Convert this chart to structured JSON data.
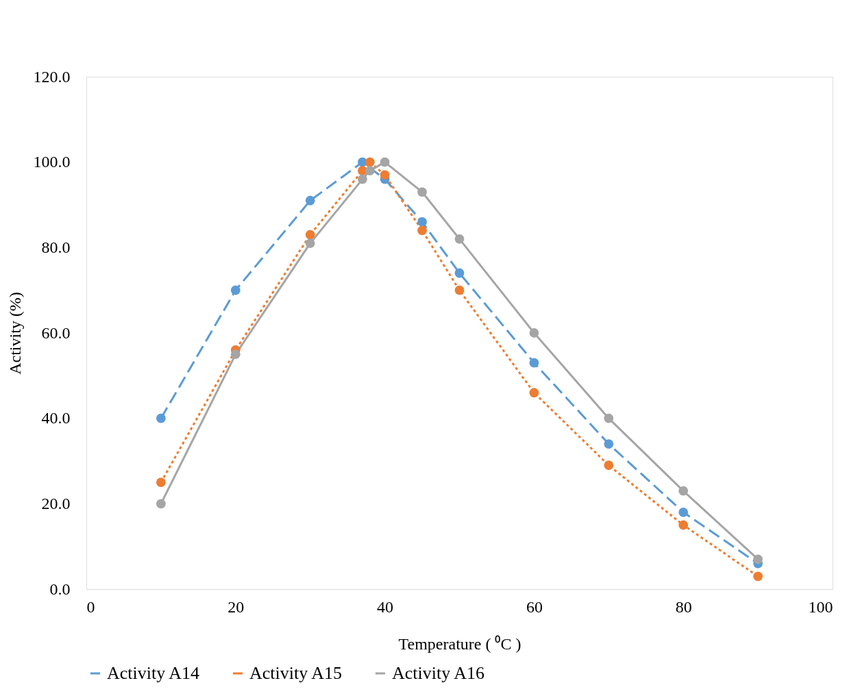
{
  "chart_data": {
    "type": "line",
    "xlabel": "Temperature ( ⁰C )",
    "ylabel": "Activity (%)",
    "xlim": [
      0,
      100
    ],
    "xticks": [
      0,
      20,
      40,
      60,
      80,
      100
    ],
    "ylim": [
      0,
      120
    ],
    "yticks": [
      {
        "value": 0,
        "label": "0.0"
      },
      {
        "value": 20,
        "label": "20.0"
      },
      {
        "value": 40,
        "label": "40.0"
      },
      {
        "value": 60,
        "label": "60.0"
      },
      {
        "value": 80,
        "label": "80.0"
      },
      {
        "value": 100,
        "label": "100.0"
      },
      {
        "value": 120,
        "label": "120.0"
      }
    ],
    "grid": false,
    "legend": "bottom",
    "marker": "circle",
    "series": [
      {
        "name": "Activity A14",
        "color": "#5b9bd5",
        "line_style": "dashed",
        "x": [
          10,
          20,
          30,
          37,
          40,
          45,
          50,
          60,
          70,
          80,
          90
        ],
        "values": [
          40,
          70,
          91,
          100,
          96,
          86,
          74,
          53,
          34,
          18,
          6
        ]
      },
      {
        "name": "Activity A15",
        "color": "#ed7d31",
        "line_style": "dotted",
        "x": [
          10,
          20,
          30,
          37,
          38,
          40,
          45,
          50,
          60,
          70,
          80,
          90
        ],
        "values": [
          25,
          56,
          83,
          98,
          100,
          97,
          84,
          70,
          46,
          29,
          15,
          3
        ]
      },
      {
        "name": "Activity A16",
        "color": "#a5a5a5",
        "line_style": "solid",
        "x": [
          10,
          20,
          30,
          37,
          38,
          40,
          45,
          50,
          60,
          70,
          80,
          90
        ],
        "values": [
          20,
          55,
          81,
          96,
          98,
          100,
          93,
          82,
          60,
          40,
          23,
          7
        ]
      }
    ]
  }
}
